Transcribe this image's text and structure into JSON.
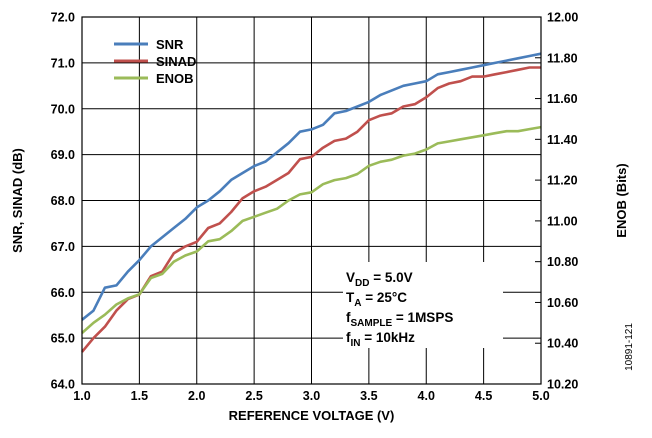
{
  "chart_data": {
    "type": "line",
    "title": "",
    "xlabel": "REFERENCE VOLTAGE (V)",
    "ylabel": "SNR, SINAD (dB)",
    "y2label": "ENOB (Bits)",
    "xlim": [
      1.0,
      5.0
    ],
    "ylim": [
      64.0,
      72.0
    ],
    "y2lim": [
      10.2,
      12.0
    ],
    "grid": true,
    "legend_position": "top-left",
    "x_ticks": [
      1.0,
      1.5,
      2.0,
      2.5,
      3.0,
      3.5,
      4.0,
      4.5,
      5.0
    ],
    "x_tick_labels": [
      "1.0",
      "1.5",
      "2.0",
      "2.5",
      "3.0",
      "3.5",
      "4.0",
      "4.5",
      "5.0"
    ],
    "y_ticks": [
      64.0,
      65.0,
      66.0,
      67.0,
      68.0,
      69.0,
      70.0,
      71.0,
      72.0
    ],
    "y_tick_labels": [
      "64.0",
      "65.0",
      "66.0",
      "67.0",
      "68.0",
      "69.0",
      "70.0",
      "71.0",
      "72.0"
    ],
    "y2_ticks": [
      10.2,
      10.4,
      10.6,
      10.8,
      11.0,
      11.2,
      11.4,
      11.6,
      11.8,
      12.0
    ],
    "y2_tick_labels": [
      "10.20",
      "10.40",
      "10.60",
      "10.80",
      "11.00",
      "11.20",
      "11.40",
      "11.60",
      "11.80",
      "12.00"
    ],
    "series": [
      {
        "name": "SNR",
        "axis": "left",
        "color": "#4a7ebb",
        "x": [
          1.0,
          1.1,
          1.2,
          1.3,
          1.4,
          1.5,
          1.6,
          1.7,
          1.8,
          1.9,
          2.0,
          2.1,
          2.2,
          2.3,
          2.4,
          2.5,
          2.6,
          2.7,
          2.8,
          2.9,
          3.0,
          3.1,
          3.2,
          3.3,
          3.4,
          3.5,
          3.6,
          3.7,
          3.8,
          3.9,
          4.0,
          4.1,
          4.2,
          4.3,
          4.4,
          4.5,
          4.6,
          4.7,
          4.8,
          4.9,
          5.0
        ],
        "values": [
          65.4,
          65.6,
          66.1,
          66.15,
          66.45,
          66.7,
          67.0,
          67.2,
          67.4,
          67.6,
          67.85,
          68.0,
          68.2,
          68.45,
          68.6,
          68.75,
          68.85,
          69.05,
          69.25,
          69.5,
          69.55,
          69.65,
          69.9,
          69.95,
          70.05,
          70.15,
          70.3,
          70.4,
          70.5,
          70.55,
          70.6,
          70.75,
          70.8,
          70.85,
          70.9,
          70.95,
          71.0,
          71.05,
          71.1,
          71.15,
          71.2
        ]
      },
      {
        "name": "SINAD",
        "axis": "left",
        "color": "#c0504d",
        "x": [
          1.0,
          1.1,
          1.2,
          1.3,
          1.4,
          1.5,
          1.6,
          1.7,
          1.8,
          1.9,
          2.0,
          2.1,
          2.2,
          2.3,
          2.4,
          2.5,
          2.6,
          2.7,
          2.8,
          2.9,
          3.0,
          3.1,
          3.2,
          3.3,
          3.4,
          3.5,
          3.6,
          3.7,
          3.8,
          3.9,
          4.0,
          4.1,
          4.2,
          4.3,
          4.4,
          4.5,
          4.6,
          4.7,
          4.8,
          4.9,
          5.0
        ],
        "values": [
          64.7,
          65.0,
          65.25,
          65.6,
          65.85,
          65.95,
          66.35,
          66.45,
          66.85,
          67.0,
          67.1,
          67.4,
          67.5,
          67.75,
          68.05,
          68.2,
          68.3,
          68.45,
          68.6,
          68.9,
          68.95,
          69.15,
          69.3,
          69.35,
          69.5,
          69.75,
          69.85,
          69.9,
          70.05,
          70.1,
          70.25,
          70.45,
          70.55,
          70.6,
          70.7,
          70.7,
          70.75,
          70.8,
          70.85,
          70.9,
          70.9
        ]
      },
      {
        "name": "ENOB",
        "axis": "right",
        "color": "#9bbb59",
        "x": [
          1.0,
          1.1,
          1.2,
          1.3,
          1.4,
          1.5,
          1.6,
          1.7,
          1.8,
          1.9,
          2.0,
          2.1,
          2.2,
          2.3,
          2.4,
          2.5,
          2.6,
          2.7,
          2.8,
          2.9,
          3.0,
          3.1,
          3.2,
          3.3,
          3.4,
          3.5,
          3.6,
          3.7,
          3.8,
          3.9,
          4.0,
          4.1,
          4.2,
          4.3,
          4.4,
          4.5,
          4.6,
          4.7,
          4.8,
          4.9,
          5.0
        ],
        "values": [
          10.45,
          10.5,
          10.54,
          10.59,
          10.62,
          10.64,
          10.72,
          10.74,
          10.8,
          10.83,
          10.85,
          10.9,
          10.91,
          10.95,
          11.0,
          11.02,
          11.04,
          11.06,
          11.1,
          11.13,
          11.14,
          11.18,
          11.2,
          11.21,
          11.23,
          11.27,
          11.29,
          11.3,
          11.32,
          11.33,
          11.35,
          11.38,
          11.39,
          11.4,
          11.41,
          11.42,
          11.43,
          11.44,
          11.44,
          11.45,
          11.46
        ]
      }
    ]
  },
  "conditions": {
    "vdd_main": "V",
    "vdd_sub": "DD",
    "vdd_value": " = 5.0V",
    "ta_main": "T",
    "ta_sub": "A",
    "ta_value": " = 25°C",
    "fs_main": "f",
    "fs_sub": "SAMPLE",
    "fs_value": " = 1MSPS",
    "fin_main": "f",
    "fin_sub": "IN",
    "fin_value": " = 10kHz"
  },
  "figure_id": "10891-121"
}
